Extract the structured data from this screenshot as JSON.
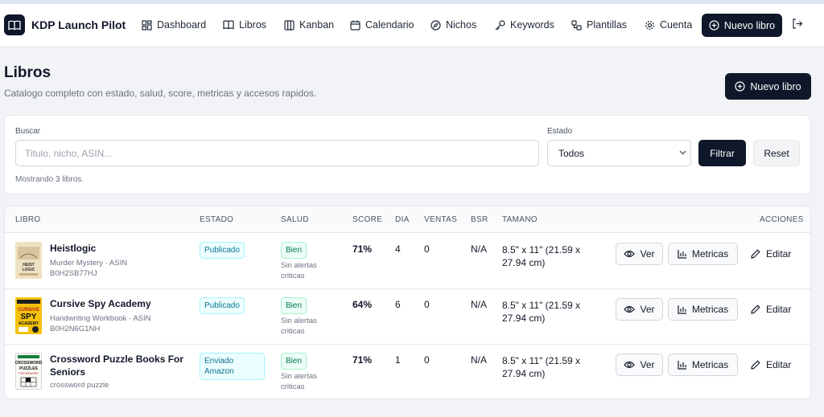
{
  "app": {
    "brand": "KDP Launch Pilot",
    "nav": [
      {
        "label": "Dashboard",
        "icon": "dashboard-icon"
      },
      {
        "label": "Libros",
        "icon": "book-icon"
      },
      {
        "label": "Kanban",
        "icon": "kanban-icon"
      },
      {
        "label": "Calendario",
        "icon": "calendar-icon"
      },
      {
        "label": "Nichos",
        "icon": "compass-icon"
      },
      {
        "label": "Keywords",
        "icon": "key-icon"
      },
      {
        "label": "Plantillas",
        "icon": "template-icon"
      },
      {
        "label": "Cuenta",
        "icon": "gear-icon"
      }
    ],
    "new_book": "Nuevo libro",
    "logout_icon": "logout-icon",
    "accent": "#0f172a"
  },
  "page": {
    "title": "Libros",
    "subtitle": "Catalogo completo con estado, salud, score, metricas y accesos rapidos.",
    "new_book": "Nuevo libro"
  },
  "filters": {
    "search_label": "Buscar",
    "search_placeholder": "Titulo, nicho, ASIN...",
    "state_label": "Estado",
    "state_value": "Todos",
    "filter_btn": "Filtrar",
    "reset_btn": "Reset",
    "count_text": "Mostrando 3 libros."
  },
  "table": {
    "columns": {
      "book": "LIBRO",
      "state": "ESTADO",
      "health": "SALUD",
      "score": "SCORE",
      "day": "DIA",
      "sales": "VENTAS",
      "bsr": "BSR",
      "size": "TAMANO",
      "actions": "ACCIONES"
    },
    "actions": {
      "view": "Ver",
      "metrics": "Metricas",
      "edit": "Editar"
    },
    "rows": [
      {
        "title": "Heistlogic",
        "meta1": "Murder Mystery · ASIN",
        "meta2": "B0H2SB77HJ",
        "state": "Publicado",
        "health": "Bien",
        "alerts": "Sin alertas criticas",
        "score": "71%",
        "day": "4",
        "sales": "0",
        "bsr": "N/A",
        "size": "8.5\" x 11\" (21.59 x 27.94 cm)",
        "cover_text": "HEIST LOGIC"
      },
      {
        "title": "Cursive Spy Academy",
        "meta1": "Handwriting Workbook · ASIN",
        "meta2": "B0H2N6G1NH",
        "state": "Publicado",
        "health": "Bien",
        "alerts": "Sin alertas criticas",
        "score": "64%",
        "day": "6",
        "sales": "0",
        "bsr": "N/A",
        "size": "8.5\" x 11\" (21.59 x 27.94 cm)",
        "cover_text": "CURSIVE SPY ACADEMY"
      },
      {
        "title": "Crossword Puzzle Books For Seniors",
        "meta1": "crossword puzzle",
        "meta2": "",
        "state": "Enviado Amazon",
        "health": "Bien",
        "alerts": "Sin alertas criticas",
        "score": "71%",
        "day": "1",
        "sales": "0",
        "bsr": "N/A",
        "size": "8.5\" x 11\" (21.59 x 27.94 cm)",
        "cover_text": "CROSSWORD PUZZLES FOR SENIORS"
      }
    ]
  }
}
